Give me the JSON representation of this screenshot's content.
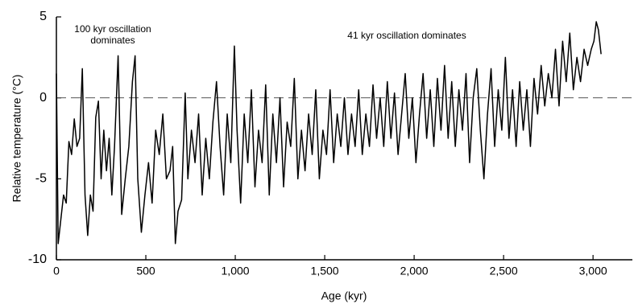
{
  "chart_data": {
    "type": "line",
    "x_label": "Age (kyr)",
    "y_label": "Relative temperature (°C)",
    "annotations": [
      {
        "lines": [
          "100 kyr oscillation",
          "dominates"
        ]
      },
      {
        "lines": [
          "41 kyr oscillation dominates"
        ]
      }
    ],
    "color": "#000000",
    "reference_line": 0,
    "xlim": [
      0,
      3220
    ],
    "ylim": [
      -10,
      5
    ],
    "xticks": [
      0,
      500,
      {
        "value": 1000,
        "label": "1,000"
      },
      {
        "value": 1500,
        "label": "1,500"
      },
      {
        "value": 2000,
        "label": "2,000"
      },
      {
        "value": 2500,
        "label": "2,500"
      },
      {
        "value": 3000,
        "label": "3,000"
      }
    ],
    "yticks": [
      5,
      0,
      -5,
      -10
    ],
    "x": [
      0,
      10,
      25,
      40,
      55,
      70,
      85,
      100,
      115,
      130,
      145,
      160,
      175,
      190,
      205,
      220,
      235,
      250,
      265,
      280,
      295,
      310,
      325,
      345,
      365,
      385,
      405,
      425,
      440,
      455,
      475,
      495,
      515,
      535,
      555,
      575,
      595,
      615,
      635,
      650,
      665,
      680,
      700,
      720,
      735,
      755,
      775,
      795,
      815,
      835,
      855,
      875,
      895,
      915,
      935,
      955,
      975,
      995,
      1010,
      1030,
      1050,
      1070,
      1090,
      1110,
      1130,
      1150,
      1170,
      1190,
      1210,
      1230,
      1250,
      1270,
      1290,
      1310,
      1330,
      1350,
      1370,
      1390,
      1410,
      1430,
      1450,
      1470,
      1490,
      1510,
      1530,
      1550,
      1570,
      1590,
      1610,
      1630,
      1650,
      1670,
      1690,
      1710,
      1730,
      1750,
      1770,
      1790,
      1810,
      1830,
      1850,
      1870,
      1890,
      1910,
      1930,
      1950,
      1970,
      1990,
      2010,
      2030,
      2050,
      2070,
      2090,
      2110,
      2130,
      2150,
      2170,
      2190,
      2210,
      2230,
      2250,
      2270,
      2290,
      2310,
      2330,
      2350,
      2370,
      2390,
      2410,
      2430,
      2450,
      2470,
      2490,
      2510,
      2530,
      2550,
      2570,
      2590,
      2610,
      2630,
      2650,
      2670,
      2690,
      2710,
      2730,
      2750,
      2770,
      2790,
      2810,
      2830,
      2850,
      2870,
      2890,
      2910,
      2930,
      2950,
      2970,
      2990,
      3005,
      3018,
      3030,
      3045
    ],
    "values": [
      1.5,
      -9,
      -7.5,
      -6,
      -6.5,
      -2.7,
      -3.5,
      -1.3,
      -3,
      -2.5,
      1.8,
      -6,
      -8.5,
      -6,
      -7,
      -1.2,
      -0.2,
      -5,
      -2,
      -4.5,
      -2.5,
      -6,
      -3,
      2.6,
      -7.2,
      -5,
      -3,
      1,
      2.6,
      -5,
      -8.3,
      -6,
      -4,
      -6.5,
      -2,
      -3.5,
      -1,
      -5,
      -4.5,
      -3,
      -9,
      -7,
      -6.3,
      0.3,
      -5,
      -2,
      -4,
      -1,
      -6,
      -2.5,
      -5,
      -1.5,
      1,
      -3,
      -6,
      -1,
      -4,
      3.2,
      -2,
      -6.5,
      -1,
      -4,
      0.5,
      -5.5,
      -2,
      -4,
      0.8,
      -6,
      -1,
      -4,
      0,
      -5.5,
      -1.5,
      -3,
      1.2,
      -5,
      -2,
      -4.5,
      -1,
      -3.5,
      0.5,
      -5,
      -2,
      -3.5,
      0.5,
      -4,
      -1,
      -3,
      0,
      -3.5,
      -1,
      -3,
      0.5,
      -3.5,
      -1,
      -3,
      0.8,
      -2.5,
      0,
      -3,
      1,
      -2.5,
      0.3,
      -3.5,
      -1,
      1.5,
      -2.5,
      0,
      -4,
      -1,
      1.5,
      -2.5,
      0.5,
      -3,
      1.2,
      -2,
      2,
      -2.5,
      1,
      -3,
      0.5,
      -2,
      1.5,
      -4,
      0,
      1.8,
      -2,
      -5,
      -1,
      1.8,
      -3,
      0.5,
      -2,
      2.5,
      -2.5,
      0.5,
      -3,
      1,
      -2,
      0.5,
      -3,
      1.2,
      -1,
      2,
      -0.5,
      1.5,
      0,
      3,
      -0.5,
      3.5,
      1,
      4,
      0.5,
      2.5,
      1,
      3,
      2,
      3,
      3.5,
      4.7,
      4.2,
      2.7
    ]
  }
}
